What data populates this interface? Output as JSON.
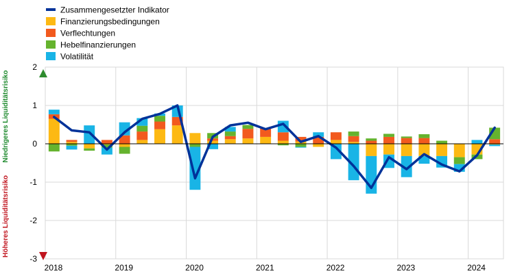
{
  "chart_data": {
    "type": "bar",
    "stacked": true,
    "quarters": [
      "2018 Q1",
      "2018 Q2",
      "2018 Q3",
      "2018 Q4",
      "2019 Q1",
      "2019 Q2",
      "2019 Q3",
      "2019 Q4",
      "2020 Q1",
      "2020 Q2",
      "2020 Q3",
      "2020 Q4",
      "2021 Q1",
      "2021 Q2",
      "2021 Q3",
      "2021 Q4",
      "2022 Q1",
      "2022 Q2",
      "2022 Q3",
      "2022 Q4",
      "2023 Q1",
      "2023 Q2",
      "2023 Q3",
      "2023 Q4",
      "2024 Q1",
      "2024 Q2"
    ],
    "x_tick_labels": [
      "2018",
      "2019",
      "2020",
      "2021",
      "2022",
      "2023",
      "2024"
    ],
    "y_tick_labels": [
      "2",
      "1",
      "0",
      "-1",
      "-2",
      "-3"
    ],
    "ylim": [
      -3,
      2
    ],
    "grid": true,
    "legend_position": "top-left",
    "series": [
      {
        "name": "Finanzierungsbedingungen",
        "color": "#fdb913",
        "values": [
          0.65,
          0.05,
          -0.12,
          -0.02,
          -0.08,
          0.1,
          0.38,
          0.48,
          0.28,
          0.08,
          0.12,
          0.14,
          0.18,
          0.08,
          0.06,
          -0.08,
          0.1,
          0.05,
          -0.32,
          -0.28,
          -0.32,
          -0.32,
          -0.32,
          -0.35,
          -0.28,
          -0.02
        ]
      },
      {
        "name": "Verflechtungen",
        "color": "#f25a1e",
        "values": [
          0.12,
          0.05,
          0.0,
          0.1,
          0.22,
          0.22,
          0.2,
          0.22,
          0.0,
          0.06,
          0.08,
          0.25,
          0.22,
          0.22,
          0.12,
          0.18,
          0.2,
          0.15,
          0.08,
          0.18,
          0.15,
          0.15,
          0.0,
          0.0,
          0.0,
          0.12
        ]
      },
      {
        "name": "Hebelfinanzierungen",
        "color": "#65b32e",
        "values": [
          -0.2,
          -0.05,
          -0.06,
          -0.08,
          -0.18,
          0.15,
          0.15,
          0.0,
          -0.08,
          0.14,
          0.12,
          0.1,
          0.0,
          -0.04,
          -0.08,
          0.0,
          0.0,
          0.12,
          0.06,
          0.08,
          0.04,
          0.1,
          0.08,
          -0.18,
          -0.12,
          0.3
        ]
      },
      {
        "name": "Volatilität",
        "color": "#19b4e6",
        "values": [
          0.12,
          -0.1,
          0.48,
          -0.18,
          0.34,
          0.2,
          0.06,
          0.3,
          -1.12,
          -0.14,
          0.12,
          0.0,
          0.0,
          0.3,
          -0.02,
          0.12,
          -0.4,
          -0.95,
          -0.98,
          -0.35,
          -0.55,
          -0.2,
          -0.3,
          -0.2,
          0.1,
          -0.04
        ]
      }
    ],
    "line": {
      "name": "Zusammengesetzter Indikator",
      "color": "#003299",
      "values": [
        0.7,
        0.35,
        0.3,
        -0.15,
        0.3,
        0.65,
        0.78,
        1.0,
        -0.9,
        0.18,
        0.48,
        0.55,
        0.38,
        0.52,
        0.05,
        0.2,
        -0.1,
        -0.58,
        -1.15,
        -0.35,
        -0.66,
        -0.27,
        -0.54,
        -0.72,
        -0.3,
        0.42
      ]
    },
    "legend": [
      {
        "label": "Zusammengesetzter Indikator",
        "swatch": "line",
        "color": "#003299"
      },
      {
        "label": "Finanzierungsbedingungen",
        "swatch": "box",
        "color": "#fdb913"
      },
      {
        "label": "Verflechtungen",
        "swatch": "box",
        "color": "#f25a1e"
      },
      {
        "label": "Hebelfinanzierungen",
        "swatch": "box",
        "color": "#65b32e"
      },
      {
        "label": "Volatilität",
        "swatch": "box",
        "color": "#19b4e6"
      }
    ],
    "side_labels": {
      "upper": {
        "text": "Niedrigeres Liquiditätsrisiko",
        "color": "#1f8a2e"
      },
      "lower": {
        "text": "Höheres Liquiditätsrisiko",
        "color": "#c0141e"
      }
    }
  }
}
